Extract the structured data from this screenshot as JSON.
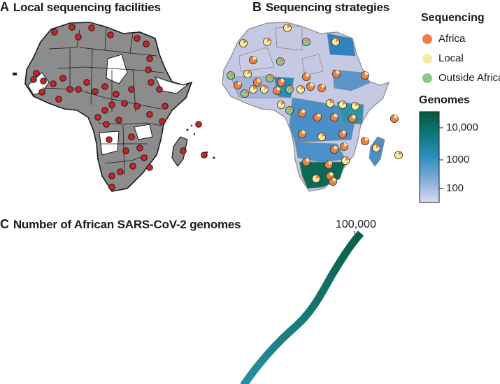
{
  "panels": {
    "a": {
      "letter": "A",
      "title": "Local sequencing facilities"
    },
    "b": {
      "letter": "B",
      "title": "Sequencing strategies"
    },
    "c": {
      "letter": "C",
      "title": "Number of African SARS-CoV-2 genomes"
    }
  },
  "legend_sequencing": {
    "title": "Sequencing",
    "items": [
      {
        "label": "Africa",
        "color": "#ee8048"
      },
      {
        "label": "Local",
        "color": "#f4eda0"
      },
      {
        "label": "Outside Africa",
        "color": "#8bc78a"
      }
    ]
  },
  "legend_genomes": {
    "title": "Genomes",
    "ticks": [
      "10,000",
      "1000",
      "100"
    ],
    "gradient": [
      "#07563e",
      "#0f7c84",
      "#2d8fbe",
      "#8cb0dc",
      "#dcdcef"
    ]
  },
  "chart_c": {
    "end_label": "100,000",
    "line_color_start": "#2a8fa8",
    "line_color_end": "#0a5c4a"
  },
  "colors": {
    "facility_marker": "#d21f28",
    "land_gray": "#8c8c8c",
    "land_light": "#c0c4e0"
  }
}
